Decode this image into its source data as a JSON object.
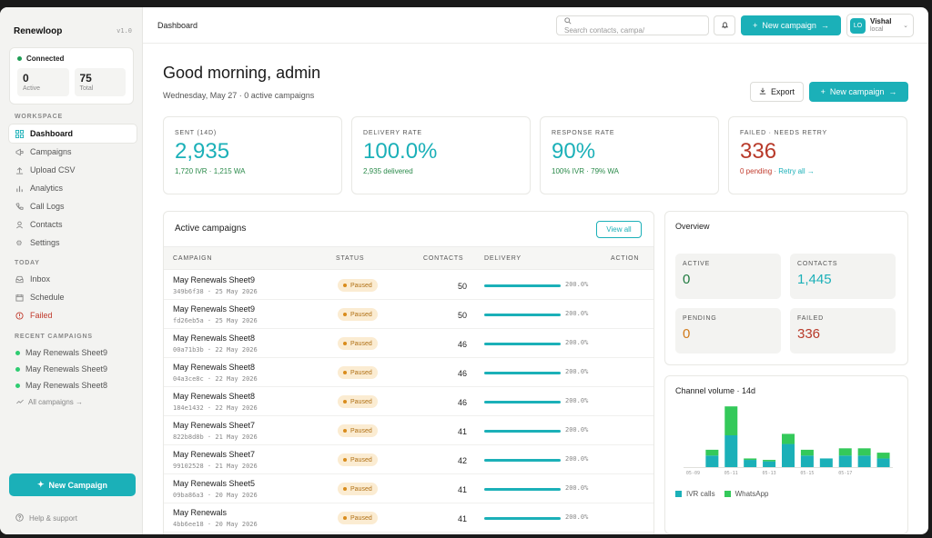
{
  "app": {
    "name": "Renewloop",
    "version": "v1.0"
  },
  "connection": {
    "status": "Connected",
    "stats": [
      {
        "value": "0",
        "label": "Active"
      },
      {
        "value": "75",
        "label": "Total"
      }
    ]
  },
  "sidebar": {
    "workspace_title": "WORKSPACE",
    "workspace": [
      {
        "label": "Dashboard",
        "icon": "dashboard-icon"
      },
      {
        "label": "Campaigns",
        "icon": "megaphone-icon"
      },
      {
        "label": "Upload CSV",
        "icon": "upload-icon"
      },
      {
        "label": "Analytics",
        "icon": "analytics-icon"
      },
      {
        "label": "Call Logs",
        "icon": "phone-icon"
      },
      {
        "label": "Contacts",
        "icon": "contacts-icon"
      },
      {
        "label": "Settings",
        "icon": "gear-icon"
      }
    ],
    "today_title": "TODAY",
    "today": [
      {
        "label": "Inbox",
        "icon": "inbox-icon"
      },
      {
        "label": "Schedule",
        "icon": "calendar-icon"
      },
      {
        "label": "Failed",
        "icon": "alert-icon"
      }
    ],
    "recent_title": "RECENT CAMPAIGNS",
    "recent": [
      "May Renewals Sheet9",
      "May Renewals Sheet9",
      "May Renewals Sheet8"
    ],
    "all_campaigns": "All campaigns →",
    "new_campaign": "New Campaign",
    "help": "Help & support"
  },
  "topbar": {
    "breadcrumb": "Dashboard",
    "search_placeholder": "Search contacts, campa/",
    "new_campaign": "New campaign",
    "user": {
      "initials": "LO",
      "name": "Vishal",
      "host": "local"
    }
  },
  "header": {
    "greeting": "Good morning, admin",
    "subtitle": "Wednesday, May 27 · 0 active campaigns",
    "export": "Export",
    "new_campaign": "New campaign"
  },
  "kpis": [
    {
      "label": "SENT (14D)",
      "value": "2,935",
      "sub": "1,720 IVR · 1,215 WA"
    },
    {
      "label": "DELIVERY RATE",
      "value": "100.0%",
      "sub": "2,935 delivered"
    },
    {
      "label": "RESPONSE RATE",
      "value": "90%",
      "sub": "100% IVR · 79% WA"
    },
    {
      "label": "FAILED · NEEDS RETRY",
      "value": "336",
      "sub_a": "0 pending",
      "sub_sep": " · ",
      "sub_b": "Retry all →"
    }
  ],
  "campaigns": {
    "title": "Active campaigns",
    "view_all": "View all",
    "columns": [
      "CAMPAIGN",
      "STATUS",
      "CONTACTS",
      "DELIVERY",
      "ACTION"
    ],
    "rows": [
      {
        "name": "May Renewals Sheet9",
        "meta": "349b6f38 · 25 May 2026",
        "status": "Paused",
        "contacts": "50",
        "delivery": "200.0%"
      },
      {
        "name": "May Renewals Sheet9",
        "meta": "fd26eb5a · 25 May 2026",
        "status": "Paused",
        "contacts": "50",
        "delivery": "200.0%"
      },
      {
        "name": "May Renewals Sheet8",
        "meta": "00a71b3b · 22 May 2026",
        "status": "Paused",
        "contacts": "46",
        "delivery": "200.0%"
      },
      {
        "name": "May Renewals Sheet8",
        "meta": "04a3ce8c · 22 May 2026",
        "status": "Paused",
        "contacts": "46",
        "delivery": "200.0%"
      },
      {
        "name": "May Renewals Sheet8",
        "meta": "184e1432 · 22 May 2026",
        "status": "Paused",
        "contacts": "46",
        "delivery": "200.0%"
      },
      {
        "name": "May Renewals Sheet7",
        "meta": "822b8d8b · 21 May 2026",
        "status": "Paused",
        "contacts": "41",
        "delivery": "200.0%"
      },
      {
        "name": "May Renewals Sheet7",
        "meta": "99102528 · 21 May 2026",
        "status": "Paused",
        "contacts": "42",
        "delivery": "200.0%"
      },
      {
        "name": "May Renewals Sheet5",
        "meta": "09ba86a3 · 20 May 2026",
        "status": "Paused",
        "contacts": "41",
        "delivery": "200.0%"
      },
      {
        "name": "May Renewals",
        "meta": "4bb6ee18 · 20 May 2026",
        "status": "Paused",
        "contacts": "41",
        "delivery": "200.0%"
      }
    ]
  },
  "overview": {
    "title": "Overview",
    "cards": [
      {
        "label": "ACTIVE",
        "value": "0",
        "color": "#1f7a3f"
      },
      {
        "label": "CONTACTS",
        "value": "1,445",
        "color": "#1bb0b8"
      },
      {
        "label": "PENDING",
        "value": "0",
        "color": "#d17a1a"
      },
      {
        "label": "FAILED",
        "value": "336",
        "color": "#b83a2a"
      }
    ]
  },
  "chart_data": {
    "type": "bar",
    "title": "Channel volume · 14d",
    "stacked": true,
    "categories": [
      "05-09",
      "05-10",
      "05-11",
      "05-12",
      "05-13",
      "05-14",
      "05-15",
      "05-16",
      "05-17",
      "05-18",
      "05-19"
    ],
    "tick_labels": [
      "05-09",
      "05-11",
      "05-13",
      "05-15",
      "05-17"
    ],
    "series": [
      {
        "name": "IVR calls",
        "color": "#1bb0b8",
        "values": [
          0,
          40,
          110,
          25,
          20,
          80,
          40,
          30,
          40,
          40,
          30
        ]
      },
      {
        "name": "WhatsApp",
        "color": "#34c95a",
        "values": [
          0,
          20,
          100,
          5,
          5,
          35,
          20,
          0,
          25,
          25,
          20
        ]
      }
    ],
    "ylim": [
      0,
      220
    ],
    "grid": false,
    "legend": "bottom-left"
  }
}
